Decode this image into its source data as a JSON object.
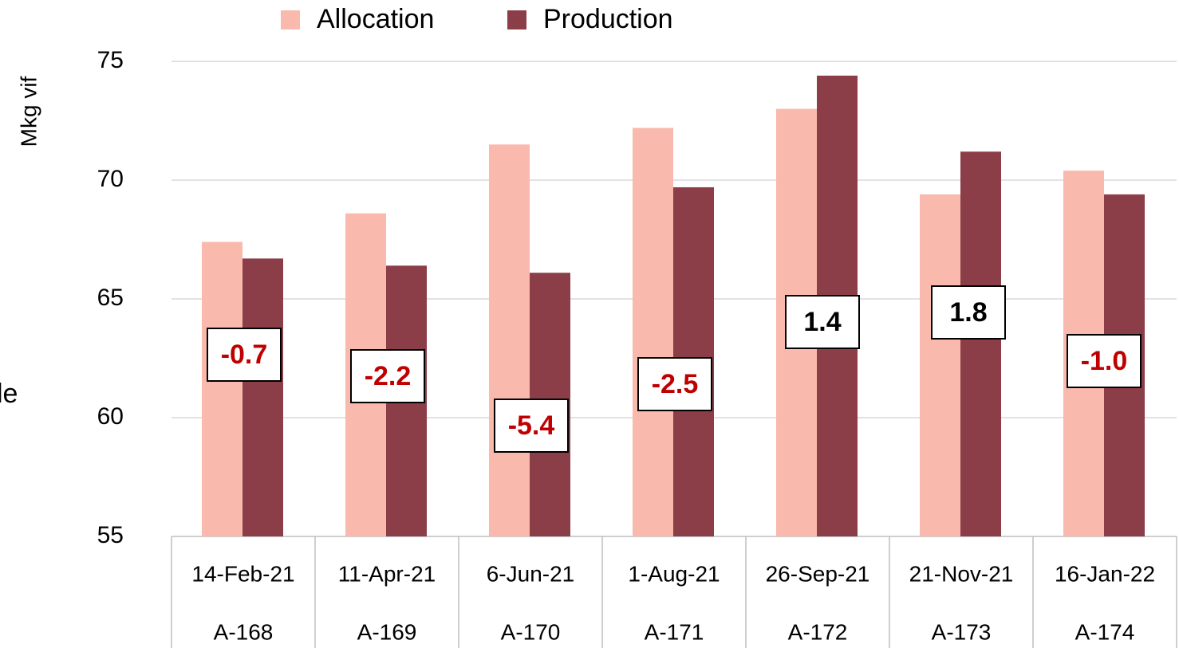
{
  "chart_data": {
    "type": "bar",
    "y_axis_label": "Mkg vif",
    "side_text": "le",
    "categories": [
      "14-Feb-21",
      "11-Apr-21",
      "6-Jun-21",
      "1-Aug-21",
      "26-Sep-21",
      "21-Nov-21",
      "16-Jan-22"
    ],
    "subcategories": [
      "A-168",
      "A-169",
      "A-170",
      "A-171",
      "A-172",
      "A-173",
      "A-174"
    ],
    "series": [
      {
        "name": "Allocation",
        "color": "#f9b9ad",
        "values": [
          67.4,
          68.6,
          71.5,
          72.2,
          73.0,
          69.4,
          70.4
        ]
      },
      {
        "name": "Production",
        "color": "#8b3e47",
        "values": [
          66.7,
          66.4,
          66.1,
          69.7,
          74.4,
          71.2,
          69.4
        ]
      }
    ],
    "differences": {
      "values": [
        -0.7,
        -2.2,
        -5.4,
        -2.5,
        1.4,
        1.8,
        -1.0
      ],
      "value_labels": [
        "-0.7",
        "-2.2",
        "-5.4",
        "-2.5",
        "1.4",
        "1.8",
        "-1.0"
      ],
      "negative_color": "#c00000",
      "positive_color": "#000000"
    },
    "ylim": [
      55,
      75
    ],
    "yticks": [
      55,
      60,
      65,
      70,
      75
    ],
    "grid": true,
    "legend": "top"
  }
}
